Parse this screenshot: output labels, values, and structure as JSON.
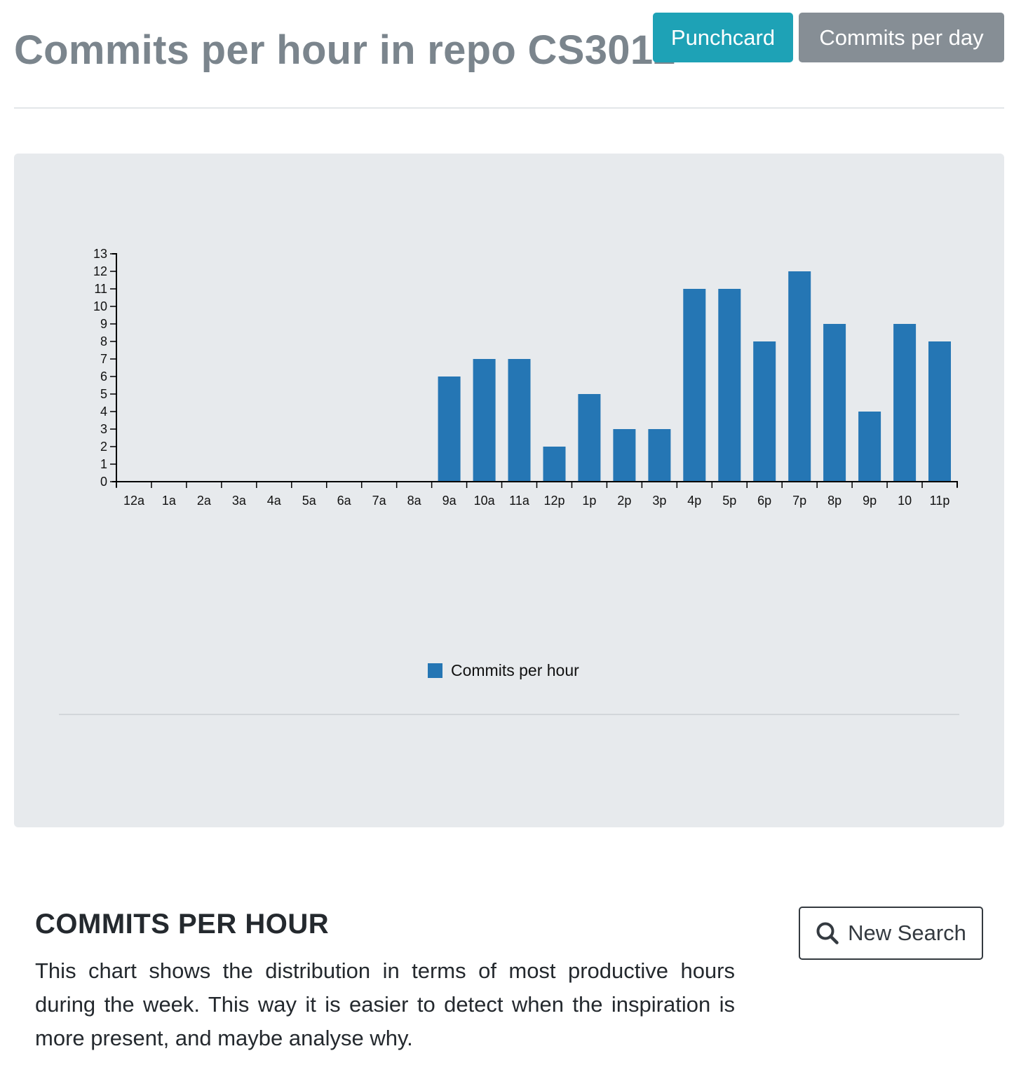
{
  "header": {
    "title": "Commits per hour in repo CS3012",
    "buttons": {
      "punchcard": "Punchcard",
      "commits_per_day": "Commits per day"
    }
  },
  "colors": {
    "bar": "#2576b4",
    "punchcard_button": "#1ea2b6",
    "commits_per_day_button": "#868e95",
    "panel_background": "#e7eaed"
  },
  "chart_data": {
    "type": "bar",
    "categories": [
      "12a",
      "1a",
      "2a",
      "3a",
      "4a",
      "5a",
      "6a",
      "7a",
      "8a",
      "9a",
      "10a",
      "11a",
      "12p",
      "1p",
      "2p",
      "3p",
      "4p",
      "5p",
      "6p",
      "7p",
      "8p",
      "9p",
      "10",
      "11p"
    ],
    "series": [
      {
        "name": "Commits per hour",
        "values": [
          0,
          0,
          0,
          0,
          0,
          0,
          0,
          0,
          0,
          6,
          7,
          7,
          2,
          5,
          3,
          3,
          11,
          11,
          8,
          12,
          9,
          4,
          9,
          8
        ]
      }
    ],
    "yticks": [
      0,
      1,
      2,
      3,
      4,
      5,
      6,
      7,
      8,
      9,
      10,
      11,
      12,
      13
    ],
    "ylim": [
      0,
      13
    ],
    "legend": "bottom-center",
    "grid": false
  },
  "section": {
    "title": "COMMITS PER HOUR",
    "description": "This chart shows the distribution in terms of most productive hours during the week. This way it is easier to detect when the inspiration is more present, and maybe analyse why.",
    "search_button": "New Search",
    "search_icon": "search-icon"
  }
}
